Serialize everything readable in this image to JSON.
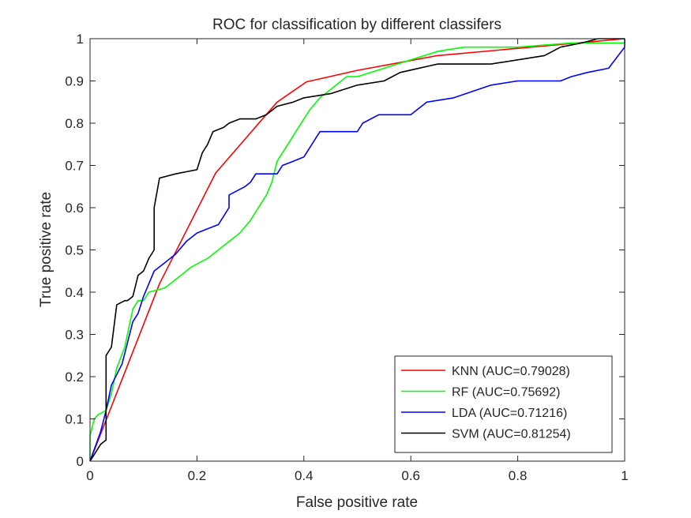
{
  "chart_data": {
    "type": "line",
    "title": "ROC for classification by different classifers",
    "xlabel": "False positive rate",
    "ylabel": "True positive rate",
    "xlim": [
      0,
      1
    ],
    "ylim": [
      0,
      1
    ],
    "xticks": [
      0,
      0.2,
      0.4,
      0.6,
      0.8,
      1
    ],
    "xtick_labels": [
      "0",
      "0.2",
      "0.4",
      "0.6",
      "0.8",
      "1"
    ],
    "yticks": [
      0,
      0.1,
      0.2,
      0.3,
      0.4,
      0.5,
      0.6,
      0.7,
      0.8,
      0.9,
      1
    ],
    "ytick_labels": [
      "0",
      "0.1",
      "0.2",
      "0.3",
      "0.4",
      "0.5",
      "0.6",
      "0.7",
      "0.8",
      "0.9",
      "1"
    ],
    "grid": false,
    "legend_position": "bottom-right",
    "series": [
      {
        "name": "KNN (AUC=0.79028)",
        "color": "#ff0000",
        "points": [
          [
            0,
            0
          ],
          [
            0.13,
            0.42
          ],
          [
            0.235,
            0.682
          ],
          [
            0.35,
            0.85
          ],
          [
            0.405,
            0.898
          ],
          [
            0.5,
            0.925
          ],
          [
            0.65,
            0.96
          ],
          [
            1,
            1
          ]
        ]
      },
      {
        "name": "RF (AUC=0.75692)",
        "color": "#00ff00",
        "points": [
          [
            0,
            0
          ],
          [
            0,
            0.06
          ],
          [
            0.008,
            0.1
          ],
          [
            0.015,
            0.11
          ],
          [
            0.03,
            0.12
          ],
          [
            0.04,
            0.16
          ],
          [
            0.05,
            0.22
          ],
          [
            0.065,
            0.27
          ],
          [
            0.08,
            0.36
          ],
          [
            0.09,
            0.38
          ],
          [
            0.1,
            0.38
          ],
          [
            0.11,
            0.4
          ],
          [
            0.14,
            0.41
          ],
          [
            0.16,
            0.43
          ],
          [
            0.19,
            0.46
          ],
          [
            0.22,
            0.48
          ],
          [
            0.25,
            0.51
          ],
          [
            0.28,
            0.54
          ],
          [
            0.3,
            0.57
          ],
          [
            0.33,
            0.63
          ],
          [
            0.34,
            0.66
          ],
          [
            0.35,
            0.71
          ],
          [
            0.37,
            0.75
          ],
          [
            0.39,
            0.79
          ],
          [
            0.41,
            0.83
          ],
          [
            0.43,
            0.86
          ],
          [
            0.45,
            0.88
          ],
          [
            0.48,
            0.91
          ],
          [
            0.5,
            0.91
          ],
          [
            0.55,
            0.93
          ],
          [
            0.6,
            0.95
          ],
          [
            0.65,
            0.97
          ],
          [
            0.7,
            0.98
          ],
          [
            0.8,
            0.98
          ],
          [
            0.9,
            0.99
          ],
          [
            1,
            0.99
          ],
          [
            1,
            1
          ]
        ]
      },
      {
        "name": "LDA (AUC=0.71216)",
        "color": "#0000ff",
        "points": [
          [
            0,
            0
          ],
          [
            0.02,
            0.07
          ],
          [
            0.03,
            0.12
          ],
          [
            0.04,
            0.18
          ],
          [
            0.06,
            0.23
          ],
          [
            0.07,
            0.28
          ],
          [
            0.08,
            0.33
          ],
          [
            0.09,
            0.35
          ],
          [
            0.1,
            0.39
          ],
          [
            0.11,
            0.42
          ],
          [
            0.12,
            0.45
          ],
          [
            0.14,
            0.47
          ],
          [
            0.16,
            0.49
          ],
          [
            0.18,
            0.52
          ],
          [
            0.2,
            0.54
          ],
          [
            0.24,
            0.56
          ],
          [
            0.26,
            0.6
          ],
          [
            0.26,
            0.63
          ],
          [
            0.29,
            0.65
          ],
          [
            0.3,
            0.66
          ],
          [
            0.31,
            0.68
          ],
          [
            0.35,
            0.68
          ],
          [
            0.36,
            0.7
          ],
          [
            0.38,
            0.71
          ],
          [
            0.4,
            0.72
          ],
          [
            0.41,
            0.74
          ],
          [
            0.43,
            0.78
          ],
          [
            0.5,
            0.78
          ],
          [
            0.51,
            0.8
          ],
          [
            0.54,
            0.82
          ],
          [
            0.6,
            0.82
          ],
          [
            0.63,
            0.85
          ],
          [
            0.68,
            0.86
          ],
          [
            0.75,
            0.89
          ],
          [
            0.8,
            0.9
          ],
          [
            0.88,
            0.9
          ],
          [
            0.9,
            0.91
          ],
          [
            0.93,
            0.92
          ],
          [
            0.97,
            0.93
          ],
          [
            1,
            0.98
          ],
          [
            1,
            1
          ]
        ]
      },
      {
        "name": "SVM (AUC=0.81254)",
        "color": "#000000",
        "points": [
          [
            0,
            0
          ],
          [
            0.01,
            0.02
          ],
          [
            0.02,
            0.04
          ],
          [
            0.03,
            0.05
          ],
          [
            0.03,
            0.25
          ],
          [
            0.04,
            0.27
          ],
          [
            0.05,
            0.37
          ],
          [
            0.065,
            0.38
          ],
          [
            0.07,
            0.38
          ],
          [
            0.08,
            0.39
          ],
          [
            0.09,
            0.44
          ],
          [
            0.1,
            0.45
          ],
          [
            0.11,
            0.48
          ],
          [
            0.12,
            0.5
          ],
          [
            0.12,
            0.6
          ],
          [
            0.13,
            0.67
          ],
          [
            0.16,
            0.68
          ],
          [
            0.2,
            0.69
          ],
          [
            0.21,
            0.73
          ],
          [
            0.22,
            0.75
          ],
          [
            0.23,
            0.78
          ],
          [
            0.25,
            0.79
          ],
          [
            0.26,
            0.8
          ],
          [
            0.28,
            0.81
          ],
          [
            0.31,
            0.81
          ],
          [
            0.33,
            0.82
          ],
          [
            0.35,
            0.84
          ],
          [
            0.38,
            0.85
          ],
          [
            0.4,
            0.86
          ],
          [
            0.45,
            0.87
          ],
          [
            0.5,
            0.89
          ],
          [
            0.55,
            0.9
          ],
          [
            0.58,
            0.92
          ],
          [
            0.65,
            0.94
          ],
          [
            0.75,
            0.94
          ],
          [
            0.85,
            0.96
          ],
          [
            0.88,
            0.98
          ],
          [
            0.92,
            0.99
          ],
          [
            0.95,
            1
          ],
          [
            1,
            1
          ]
        ]
      }
    ]
  }
}
